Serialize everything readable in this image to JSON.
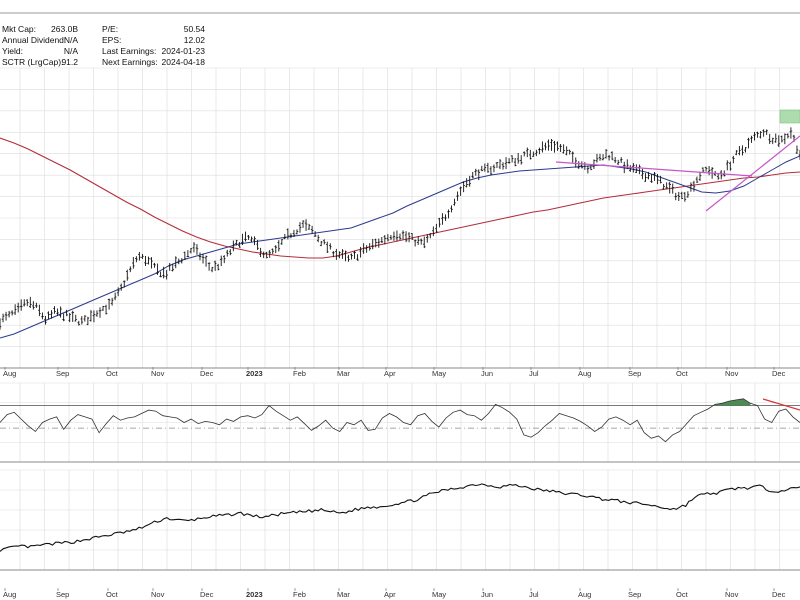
{
  "info": {
    "left": [
      {
        "label": "Mkt Cap:",
        "value": "263.0B"
      },
      {
        "label": "Annual Dividend:",
        "value": "N/A"
      },
      {
        "label": "Yield:",
        "value": "N/A"
      },
      {
        "label": "SCTR (LrgCap):",
        "value": "91.2"
      }
    ],
    "right": [
      {
        "label": "P/E:",
        "value": "50.54"
      },
      {
        "label": "EPS:",
        "value": "12.02"
      },
      {
        "label": "Last Earnings:",
        "value": "2024-01-23"
      },
      {
        "label": "Next Earnings:",
        "value": "2024-04-18"
      }
    ]
  },
  "colors": {
    "price_bars": "#111111",
    "ma_short": "#2b3a8f",
    "ma_long": "#b32d3a",
    "trendline": "#c656c9",
    "rsi_fill": "#4e8a55",
    "rsi_divergence": "#d9343d",
    "highlight_box": "#9fd8a0",
    "grid": "#dcdcdc"
  },
  "chart_data": [
    {
      "type": "line",
      "panel": "price",
      "x_labels": [
        "Aug",
        "Sep",
        "Oct",
        "Nov",
        "Dec",
        "2023",
        "Feb",
        "Mar",
        "Apr",
        "May",
        "Jun",
        "Jul",
        "Aug",
        "Sep",
        "Oct",
        "Nov",
        "Dec"
      ],
      "year_label": "2023",
      "grid": true,
      "series": [
        {
          "style": "ohlc",
          "values": [
            47,
            52,
            58,
            66,
            60,
            48,
            56,
            53,
            49,
            46,
            52,
            59,
            62,
            76,
            95,
            112,
            108,
            98,
            94,
            103,
            111,
            120,
            110,
            99,
            104,
            116,
            126,
            130,
            122,
            111,
            117,
            129,
            137,
            143,
            137,
            126,
            118,
            113,
            108,
            114,
            120,
            125,
            130,
            135,
            132,
            128,
            124,
            133,
            146,
            160,
            176,
            189,
            196,
            198,
            202,
            205,
            208,
            212,
            216,
            220,
            224,
            220,
            213,
            205,
            201,
            208,
            214,
            209,
            202,
            198,
            194,
            191,
            185,
            178,
            170,
            178,
            192,
            200,
            190,
            199,
            212,
            220,
            230,
            237,
            230,
            228,
            236,
            214
          ]
        },
        {
          "style": "line",
          "color_key": "ma_short",
          "values": [
            30,
            34,
            40,
            46,
            52,
            58,
            64,
            70,
            76,
            82,
            88,
            94,
            102,
            108,
            112,
            116,
            120,
            124,
            126,
            128,
            130,
            132,
            134,
            136,
            138,
            140,
            145,
            150,
            155,
            162,
            168,
            174,
            180,
            186,
            190,
            193,
            195,
            197,
            198,
            199,
            200,
            201,
            202,
            203,
            201,
            199,
            196,
            191,
            186,
            181,
            176,
            175,
            177,
            182,
            190,
            198,
            206,
            212
          ]
        },
        {
          "style": "line",
          "color_key": "ma_long",
          "values": [
            230,
            225,
            219,
            212,
            205,
            198,
            190,
            182,
            174,
            166,
            159,
            151,
            144,
            137,
            131,
            126,
            122,
            119,
            116,
            114,
            112,
            111,
            110,
            110,
            112,
            116,
            120,
            123,
            126,
            129,
            132,
            135,
            138,
            141,
            144,
            147,
            150,
            153,
            156,
            158,
            161,
            164,
            167,
            170,
            172,
            174,
            176,
            178,
            180,
            182,
            184,
            186,
            188,
            190,
            191,
            193,
            195,
            196
          ]
        }
      ]
    },
    {
      "type": "line",
      "panel": "oscillator",
      "grid": true,
      "series": [
        {
          "style": "line",
          "values": [
            55,
            62,
            64,
            58,
            52,
            47,
            55,
            58,
            60,
            49,
            57,
            62,
            60,
            58,
            46,
            54,
            61,
            57,
            59,
            60,
            63,
            66,
            65,
            61,
            60,
            59,
            55,
            58,
            54,
            56,
            55,
            53,
            58,
            56,
            60,
            61,
            59,
            62,
            70,
            65,
            61,
            57,
            60,
            54,
            48,
            52,
            57,
            50,
            47,
            55,
            53,
            57,
            48,
            49,
            59,
            63,
            60,
            55,
            53,
            61,
            63,
            56,
            51,
            59,
            64,
            66,
            62,
            61,
            57,
            63,
            71,
            68,
            64,
            58,
            44,
            42,
            46,
            52,
            57,
            63,
            61,
            59,
            56,
            52,
            47,
            51,
            58,
            60,
            57,
            53,
            57,
            46,
            41,
            43,
            38,
            44,
            47,
            54,
            61,
            64,
            67,
            71,
            72,
            74,
            75,
            76,
            72,
            70,
            58,
            55,
            65,
            67,
            60,
            55
          ]
        }
      ]
    },
    {
      "type": "line",
      "panel": "relative-strength",
      "x_labels": [
        "Aug",
        "Sep",
        "Oct",
        "Nov",
        "Dec",
        "2023",
        "Feb",
        "Mar",
        "Apr",
        "May",
        "Jun",
        "Jul",
        "Aug",
        "Sep",
        "Oct",
        "Nov",
        "Dec"
      ],
      "year_label": "2023",
      "grid": true,
      "series": [
        {
          "style": "line",
          "values": [
            20,
            22,
            24,
            23,
            25,
            26,
            27,
            28,
            30,
            32,
            34,
            36,
            38,
            40,
            44,
            48,
            52,
            50,
            49,
            51,
            53,
            54,
            55,
            57,
            55,
            53,
            54,
            56,
            57,
            58,
            59,
            60,
            58,
            57,
            60,
            62,
            63,
            64,
            66,
            68,
            70,
            74,
            78,
            80,
            82,
            84,
            86,
            85,
            83,
            85,
            84,
            82,
            80,
            79,
            77,
            76,
            75,
            73,
            71,
            70,
            68,
            67,
            66,
            64,
            62,
            61,
            65,
            74,
            76,
            77,
            80,
            82,
            82,
            84,
            80,
            79,
            81,
            82
          ]
        }
      ]
    }
  ]
}
